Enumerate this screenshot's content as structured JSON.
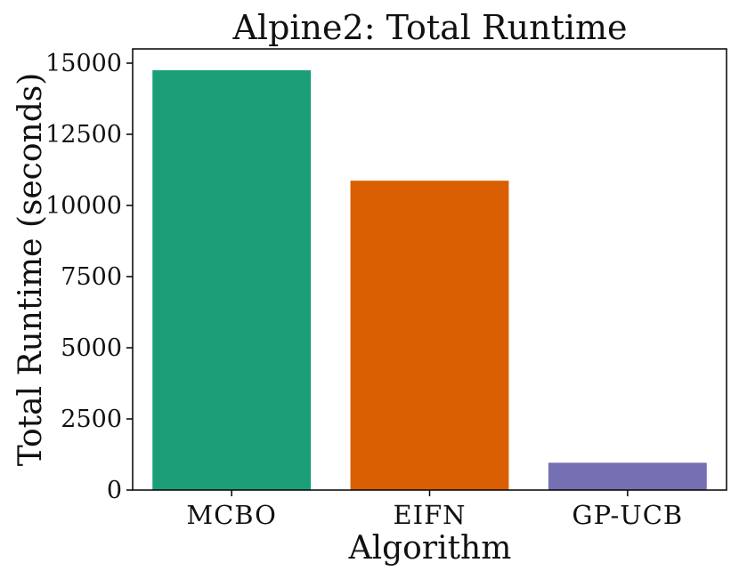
{
  "chart_data": {
    "type": "bar",
    "title": "Alpine2: Total Runtime",
    "xlabel": "Algorithm",
    "ylabel": "Total Runtime (seconds)",
    "categories": [
      "MCBO",
      "EIFN",
      "GP-UCB"
    ],
    "values": [
      14750,
      10870,
      960
    ],
    "colors": [
      "#1b9e77",
      "#d95f02",
      "#7570b3"
    ],
    "ylim": [
      0,
      15500
    ],
    "yticks": [
      0,
      2500,
      5000,
      7500,
      10000,
      12500,
      15000
    ],
    "grid": false,
    "legend": "none"
  }
}
